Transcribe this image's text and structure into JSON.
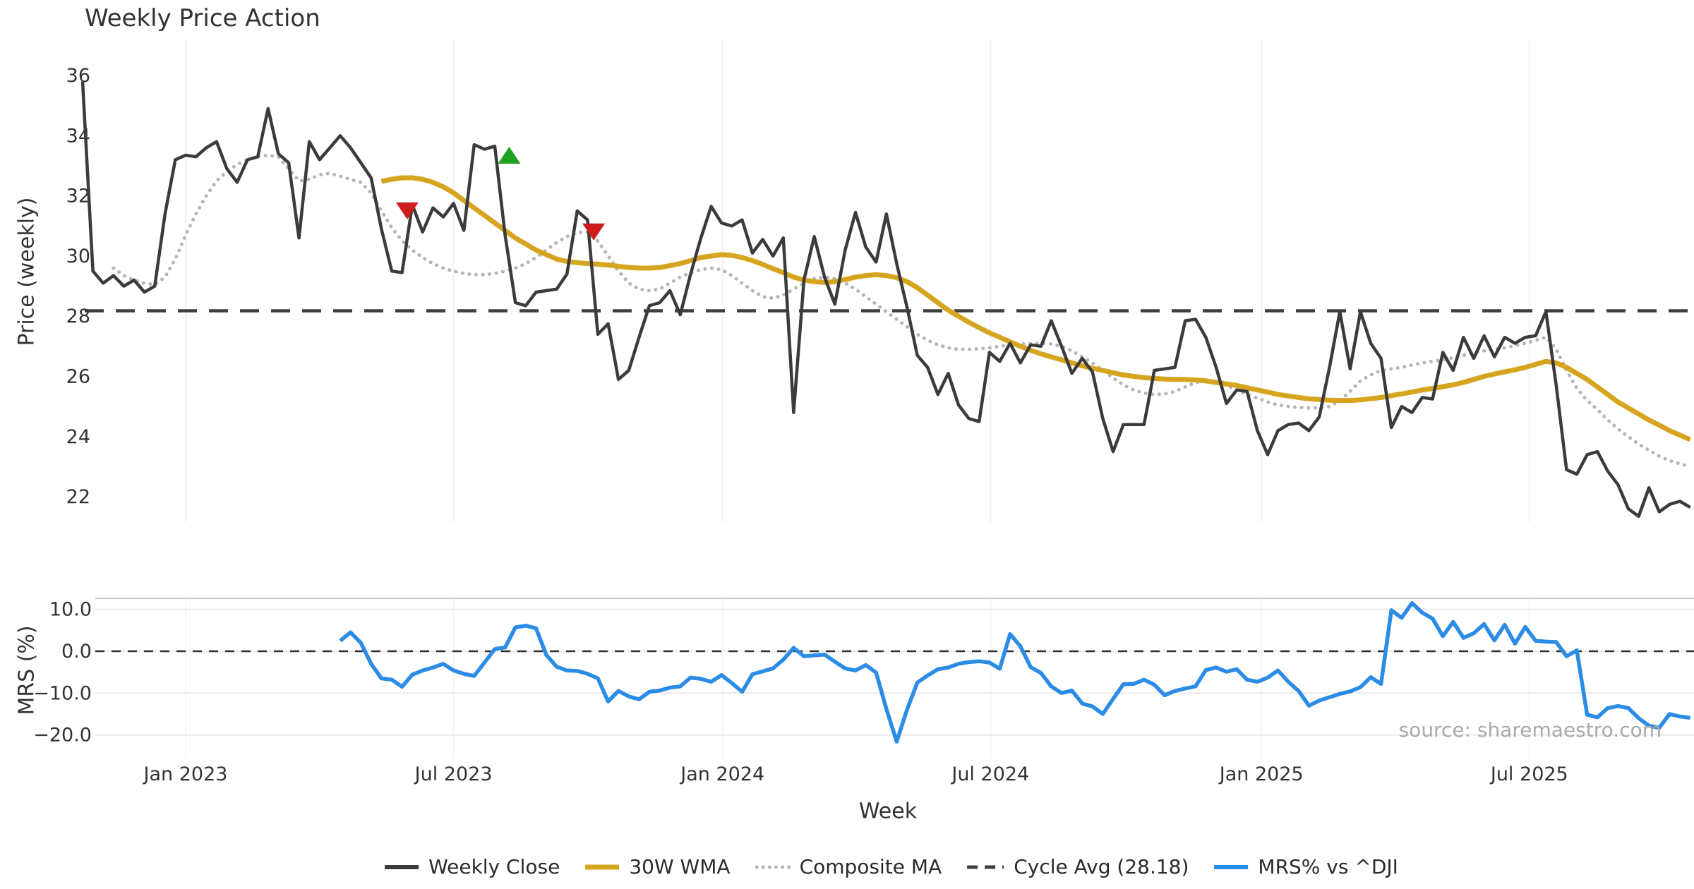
{
  "title": "Weekly Price Action",
  "source_note": "source: sharemaestro.com",
  "chart_data": {
    "type": "line",
    "title": "Weekly Price Action",
    "x_axis": {
      "label": "Week",
      "start_date_note": "weekly data, late Oct 2022 through late Oct 2025",
      "ticks": [
        {
          "label": "Jan 2023",
          "week": 10.0
        },
        {
          "label": "Jul 2023",
          "week": 36.0
        },
        {
          "label": "Jan 2024",
          "week": 62.1
        },
        {
          "label": "Jul 2024",
          "week": 88.1
        },
        {
          "label": "Jan 2025",
          "week": 114.4
        },
        {
          "label": "Jul 2025",
          "week": 140.4
        }
      ]
    },
    "legend": [
      {
        "label": "Weekly Close",
        "style": "solid",
        "color": "#3b3b3b"
      },
      {
        "label": "30W WMA",
        "style": "solid",
        "color": "#d6a41e"
      },
      {
        "label": "Composite MA",
        "style": "dotted",
        "color": "#b5b5b5"
      },
      {
        "label": "Cycle Avg (28.18)",
        "style": "dashed",
        "color": "#3f3f3f"
      },
      {
        "label": "MRS% vs ^DJI",
        "style": "solid",
        "color": "#2b8ce6"
      }
    ],
    "panels": [
      {
        "name": "price",
        "ylabel": "Price (weekly)",
        "ylim": [
          21.2,
          37.2
        ],
        "grid": "vertical-only",
        "yticks": [
          {
            "label": "36",
            "value": 36
          },
          {
            "label": "34",
            "value": 34
          },
          {
            "label": "32",
            "value": 32
          },
          {
            "label": "30",
            "value": 30
          },
          {
            "label": "28",
            "value": 28
          },
          {
            "label": "26",
            "value": 26
          },
          {
            "label": "24",
            "value": 24
          },
          {
            "label": "22",
            "value": 22
          }
        ],
        "ref_line": {
          "label": "Cycle Avg (28.18)",
          "value": 28.18,
          "style": "dashed",
          "color": "#3f3f3f"
        },
        "markers": [
          {
            "type": "sell-signal",
            "shape": "triangle-down",
            "color": "#cf1d1d",
            "week": 31.5,
            "value": 31.5
          },
          {
            "type": "buy-signal",
            "shape": "triangle-up",
            "color": "#21a121",
            "week": 41.4,
            "value": 33.35
          },
          {
            "type": "sell-signal",
            "shape": "triangle-down",
            "color": "#cf1d1d",
            "week": 49.6,
            "value": 30.8
          }
        ],
        "series": [
          {
            "name": "Weekly Close",
            "color": "#3b3b3b",
            "style": "solid",
            "width": 4.5,
            "start_week": 0,
            "values": [
              35.8,
              29.5,
              29.1,
              29.35,
              29.0,
              29.2,
              28.8,
              29.0,
              31.4,
              33.2,
              33.35,
              33.3,
              33.6,
              33.8,
              32.9,
              32.45,
              33.2,
              33.3,
              34.9,
              33.4,
              33.1,
              30.6,
              33.8,
              33.2,
              33.6,
              34.0,
              33.6,
              33.1,
              32.6,
              30.9,
              29.5,
              29.45,
              31.7,
              30.8,
              31.6,
              31.3,
              31.75,
              30.85,
              33.7,
              33.55,
              33.65,
              30.7,
              28.45,
              28.35,
              28.8,
              28.85,
              28.9,
              29.4,
              31.5,
              31.2,
              27.4,
              27.75,
              25.9,
              26.2,
              27.3,
              28.35,
              28.45,
              28.85,
              28.05,
              29.4,
              30.6,
              31.65,
              31.1,
              31.0,
              31.2,
              30.1,
              30.55,
              30.0,
              30.6,
              24.8,
              29.2,
              30.65,
              29.3,
              28.4,
              30.2,
              31.45,
              30.3,
              29.8,
              31.4,
              29.75,
              28.3,
              26.7,
              26.3,
              25.4,
              26.1,
              25.05,
              24.6,
              24.5,
              26.8,
              26.5,
              27.1,
              26.45,
              27.05,
              27.0,
              27.85,
              27.0,
              26.1,
              26.6,
              26.15,
              24.6,
              23.5,
              24.4,
              24.4,
              24.4,
              26.2,
              26.25,
              26.3,
              27.85,
              27.9,
              27.3,
              26.3,
              25.1,
              25.55,
              25.5,
              24.2,
              23.4,
              24.2,
              24.4,
              24.45,
              24.2,
              24.65,
              26.3,
              28.15,
              26.25,
              28.15,
              27.1,
              26.6,
              24.3,
              25.0,
              24.8,
              25.3,
              25.25,
              26.8,
              26.2,
              27.3,
              26.6,
              27.35,
              26.65,
              27.3,
              27.1,
              27.3,
              27.35,
              28.15,
              25.7,
              22.9,
              22.75,
              23.4,
              23.5,
              22.85,
              22.4,
              21.6,
              21.35,
              22.3,
              21.5,
              21.75,
              21.85,
              21.65
            ]
          },
          {
            "name": "30W WMA",
            "color": "#d6a41e",
            "style": "solid",
            "width": 7,
            "start_week": 29,
            "values": [
              32.48,
              32.55,
              32.6,
              32.6,
              32.55,
              32.45,
              32.3,
              32.1,
              31.85,
              31.6,
              31.35,
              31.1,
              30.85,
              30.6,
              30.4,
              30.2,
              30.05,
              29.9,
              29.82,
              29.78,
              29.75,
              29.73,
              29.7,
              29.66,
              29.62,
              29.6,
              29.6,
              29.62,
              29.68,
              29.75,
              29.85,
              29.95,
              30.0,
              30.05,
              30.02,
              29.95,
              29.85,
              29.72,
              29.58,
              29.45,
              29.3,
              29.2,
              29.15,
              29.12,
              29.15,
              29.22,
              29.3,
              29.35,
              29.38,
              29.35,
              29.28,
              29.15,
              28.95,
              28.7,
              28.45,
              28.2,
              28.0,
              27.8,
              27.62,
              27.45,
              27.3,
              27.15,
              27.0,
              26.87,
              26.75,
              26.65,
              26.55,
              26.45,
              26.35,
              26.27,
              26.2,
              26.12,
              26.05,
              26.0,
              25.96,
              25.93,
              25.91,
              25.9,
              25.9,
              25.88,
              25.85,
              25.8,
              25.75,
              25.7,
              25.62,
              25.55,
              25.48,
              25.4,
              25.35,
              25.3,
              25.26,
              25.23,
              25.21,
              25.2,
              25.2,
              25.22,
              25.26,
              25.3,
              25.36,
              25.42,
              25.48,
              25.55,
              25.6,
              25.66,
              25.72,
              25.8,
              25.9,
              26.0,
              26.08,
              26.15,
              26.22,
              26.3,
              26.4,
              26.5,
              26.45,
              26.3,
              26.1,
              25.9,
              25.65,
              25.4,
              25.15,
              24.95,
              24.75,
              24.55,
              24.38,
              24.2,
              24.05,
              23.9
            ]
          },
          {
            "name": "Composite MA",
            "color": "#b5b5b5",
            "style": "dotted",
            "width": 5,
            "start_week": 3,
            "values": [
              29.6,
              29.35,
              29.2,
              29.1,
              29.05,
              29.3,
              29.9,
              30.7,
              31.4,
              32.0,
              32.5,
              32.8,
              33.05,
              33.2,
              33.3,
              33.35,
              33.3,
              32.9,
              32.5,
              32.55,
              32.7,
              32.75,
              32.65,
              32.55,
              32.45,
              32.1,
              31.5,
              30.95,
              30.5,
              30.2,
              29.95,
              29.75,
              29.6,
              29.5,
              29.42,
              29.38,
              29.38,
              29.42,
              29.5,
              29.6,
              29.75,
              29.95,
              30.2,
              30.45,
              30.65,
              30.78,
              30.8,
              30.5,
              30.0,
              29.5,
              29.1,
              28.9,
              28.85,
              28.9,
              29.1,
              29.3,
              29.45,
              29.55,
              29.6,
              29.55,
              29.35,
              29.1,
              28.85,
              28.65,
              28.6,
              28.7,
              28.9,
              29.1,
              29.25,
              29.3,
              29.25,
              29.1,
              28.9,
              28.65,
              28.4,
              28.15,
              27.9,
              27.65,
              27.4,
              27.2,
              27.05,
              26.95,
              26.9,
              26.9,
              26.92,
              26.95,
              27.0,
              27.05,
              27.07,
              27.1,
              27.1,
              27.08,
              27.0,
              26.85,
              26.65,
              26.45,
              26.2,
              25.95,
              25.72,
              25.55,
              25.45,
              25.4,
              25.42,
              25.5,
              25.65,
              25.8,
              25.85,
              25.8,
              25.7,
              25.55,
              25.4,
              25.28,
              25.15,
              25.05,
              25.0,
              24.97,
              24.95,
              24.95,
              25.0,
              25.2,
              25.5,
              25.85,
              26.05,
              26.2,
              26.25,
              26.3,
              26.38,
              26.45,
              26.5,
              26.55,
              26.62,
              26.7,
              26.78,
              26.85,
              26.9,
              26.95,
              27.02,
              27.1,
              27.2,
              27.3,
              26.9,
              26.2,
              25.6,
              25.2,
              24.9,
              24.55,
              24.25,
              24.0,
              23.75,
              23.55,
              23.35,
              23.2,
              23.1,
              23.0
            ]
          }
        ]
      },
      {
        "name": "mrs",
        "ylabel": "MRS (%)",
        "ylim": [
          -25.8,
          12.7
        ],
        "grid": "horizontal",
        "yticks": [
          {
            "label": "10.0",
            "value": 10
          },
          {
            "label": "0.0",
            "value": 0
          },
          {
            "label": "−10.0",
            "value": -10
          },
          {
            "label": "−20.0",
            "value": -20
          }
        ],
        "ref_line": {
          "label": "zero line",
          "value": 0,
          "style": "dashed",
          "color": "#2f2f2f"
        },
        "series": [
          {
            "name": "MRS% vs ^DJI",
            "color": "#2b8ce6",
            "style": "solid",
            "width": 5.5,
            "start_week": 25,
            "values": [
              2.5,
              4.5,
              2.0,
              -3.0,
              -6.5,
              -6.8,
              -8.5,
              -5.6,
              -4.6,
              -3.9,
              -3.0,
              -4.6,
              -5.4,
              -5.9,
              -2.7,
              0.5,
              0.9,
              5.7,
              6.1,
              5.5,
              -0.9,
              -3.7,
              -4.6,
              -4.7,
              -5.4,
              -6.5,
              -12.0,
              -9.5,
              -10.8,
              -11.5,
              -9.7,
              -9.4,
              -8.7,
              -8.4,
              -6.3,
              -6.6,
              -7.3,
              -5.7,
              -7.6,
              -9.7,
              -5.5,
              -4.8,
              -4.1,
              -2.0,
              0.8,
              -1.2,
              -1.0,
              -0.8,
              -2.5,
              -4.1,
              -4.6,
              -3.3,
              -5.1,
              -13.8,
              -21.6,
              -14.0,
              -7.5,
              -5.8,
              -4.3,
              -3.9,
              -3.0,
              -2.6,
              -2.4,
              -2.7,
              -4.2,
              4.1,
              1.2,
              -3.8,
              -5.2,
              -8.4,
              -10.0,
              -9.4,
              -12.5,
              -13.2,
              -15.0,
              -11.4,
              -7.9,
              -7.8,
              -6.8,
              -8.0,
              -10.5,
              -9.5,
              -8.9,
              -8.4,
              -4.5,
              -3.9,
              -4.9,
              -4.3,
              -6.8,
              -7.3,
              -6.3,
              -4.6,
              -7.3,
              -9.5,
              -13.0,
              -11.8,
              -11.0,
              -10.2,
              -9.6,
              -8.6,
              -6.2,
              -7.8,
              9.8,
              8.0,
              11.5,
              9.2,
              7.8,
              3.6,
              7.0,
              3.2,
              4.3,
              6.5,
              2.6,
              6.3,
              1.8,
              5.8,
              2.5,
              2.3,
              2.2,
              -1.2,
              0.2,
              -15.2,
              -15.8,
              -13.6,
              -13.1,
              -13.6,
              -16.0,
              -17.8,
              -18.3,
              -15.0,
              -15.6,
              -15.9
            ]
          }
        ]
      }
    ]
  }
}
